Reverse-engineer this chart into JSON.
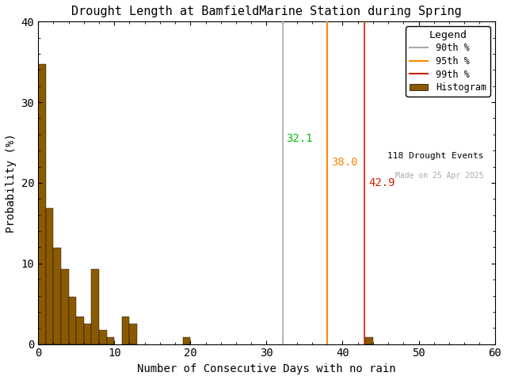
{
  "title": "Drought Length at BamfieldMarine Station during Spring",
  "xlabel": "Number of Consecutive Days with no rain",
  "ylabel": "Probability (%)",
  "xlim": [
    0,
    60
  ],
  "ylim": [
    0,
    40
  ],
  "xticks": [
    0,
    10,
    20,
    30,
    40,
    50,
    60
  ],
  "yticks": [
    0,
    10,
    20,
    30,
    40
  ],
  "bar_color": "#8B5A00",
  "bar_edgecolor": "#000000",
  "background_color": "#ffffff",
  "bin_edges": [
    0,
    1,
    2,
    3,
    4,
    5,
    6,
    7,
    8,
    9,
    10,
    11,
    12,
    13,
    14,
    15,
    16,
    17,
    18,
    19,
    20,
    21,
    22,
    23,
    24,
    25,
    26,
    27,
    28,
    29,
    30,
    31,
    32,
    33,
    34,
    35,
    36,
    37,
    38,
    39,
    40,
    41,
    42,
    43,
    44,
    45,
    46,
    47,
    48,
    49,
    50,
    51,
    52,
    53,
    54,
    55,
    56,
    57,
    58,
    59,
    60
  ],
  "bar_heights": [
    34.7,
    16.9,
    11.9,
    9.3,
    5.9,
    3.4,
    2.5,
    9.3,
    1.7,
    0.8,
    0.0,
    3.4,
    2.5,
    0.0,
    0.0,
    0.0,
    0.0,
    0.0,
    0.0,
    0.8,
    0.0,
    0.0,
    0.0,
    0.0,
    0.0,
    0.0,
    0.0,
    0.0,
    0.0,
    0.0,
    0.0,
    0.0,
    0.0,
    0.0,
    0.0,
    0.0,
    0.0,
    0.0,
    0.0,
    0.0,
    0.0,
    0.0,
    0.0,
    0.8,
    0.0,
    0.0,
    0.0,
    0.0,
    0.0,
    0.0,
    0.0,
    0.0,
    0.0,
    0.0,
    0.0,
    0.0,
    0.0,
    0.0,
    0.0,
    0.0
  ],
  "p90_value": 32.1,
  "p95_value": 38.0,
  "p99_value": 42.9,
  "p90_color": "#aaaaaa",
  "p95_color": "#ff8800",
  "p99_color": "#cc2200",
  "p90_label_color": "#00bb00",
  "p95_label_color": "#ff8800",
  "p99_label_color": "#cc2200",
  "n_events": 118,
  "made_on": "Made on 25 Apr 2025",
  "legend_title": "Legend",
  "title_fontsize": 11,
  "label_fontsize": 10,
  "tick_fontsize": 10,
  "annot_fontsize": 10
}
